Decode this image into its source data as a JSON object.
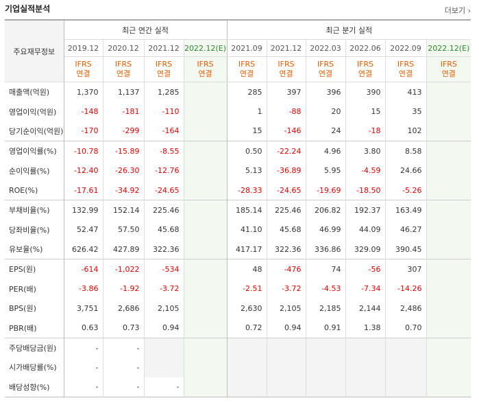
{
  "title": "기업실적분석",
  "more": "더보기",
  "label_header": "주요재무정보",
  "annual_header": "최근 연간 실적",
  "quarter_header": "최근 분기 실적",
  "annual_periods": [
    "2019.12",
    "2020.12",
    "2021.12",
    "2022.12(E)"
  ],
  "quarter_periods": [
    "2021.09",
    "2021.12",
    "2022.03",
    "2022.06",
    "2022.09",
    "2022.12(E)"
  ],
  "basis_line1": "IFRS",
  "basis_line2": "연결",
  "rows": [
    {
      "label": "매출액(억원)",
      "vals": [
        "1,370",
        "1,137",
        "1,285",
        "",
        "285",
        "397",
        "396",
        "390",
        "413",
        ""
      ]
    },
    {
      "label": "영업이익(억원)",
      "vals": [
        "-148",
        "-181",
        "-110",
        "",
        "1",
        "-88",
        "20",
        "15",
        "35",
        ""
      ]
    },
    {
      "label": "당기순이익(억원)",
      "vals": [
        "-170",
        "-299",
        "-164",
        "",
        "15",
        "-146",
        "24",
        "-18",
        "102",
        ""
      ]
    },
    {
      "label": "영업이익률(%)",
      "vals": [
        "-10.78",
        "-15.89",
        "-8.55",
        "",
        "0.50",
        "-22.24",
        "4.96",
        "3.80",
        "8.58",
        ""
      ]
    },
    {
      "label": "순이익률(%)",
      "vals": [
        "-12.40",
        "-26.30",
        "-12.76",
        "",
        "5.13",
        "-36.89",
        "5.95",
        "-4.59",
        "24.66",
        ""
      ]
    },
    {
      "label": "ROE(%)",
      "vals": [
        "-17.61",
        "-34.92",
        "-24.65",
        "",
        "-28.33",
        "-24.65",
        "-19.69",
        "-18.50",
        "-5.26",
        ""
      ]
    },
    {
      "label": "부채비율(%)",
      "vals": [
        "132.99",
        "152.14",
        "225.46",
        "",
        "185.14",
        "225.46",
        "206.82",
        "192.37",
        "163.49",
        ""
      ]
    },
    {
      "label": "당좌비율(%)",
      "vals": [
        "52.47",
        "57.50",
        "45.68",
        "",
        "41.10",
        "45.68",
        "46.99",
        "44.09",
        "46.27",
        ""
      ]
    },
    {
      "label": "유보율(%)",
      "vals": [
        "626.42",
        "427.89",
        "322.36",
        "",
        "417.17",
        "322.36",
        "336.86",
        "329.09",
        "390.45",
        ""
      ]
    },
    {
      "label": "EPS(원)",
      "vals": [
        "-614",
        "-1,022",
        "-534",
        "",
        "48",
        "-476",
        "74",
        "-56",
        "307",
        ""
      ]
    },
    {
      "label": "PER(배)",
      "vals": [
        "-3.86",
        "-1.92",
        "-3.72",
        "",
        "-2.51",
        "-3.72",
        "-4.53",
        "-7.34",
        "-14.26",
        ""
      ]
    },
    {
      "label": "BPS(원)",
      "vals": [
        "3,751",
        "2,686",
        "2,105",
        "",
        "2,630",
        "2,105",
        "2,185",
        "2,144",
        "2,486",
        ""
      ]
    },
    {
      "label": "PBR(배)",
      "vals": [
        "0.63",
        "0.73",
        "0.94",
        "",
        "0.72",
        "0.94",
        "0.91",
        "1.38",
        "0.70",
        ""
      ]
    },
    {
      "label": "주당배당금(원)",
      "vals": [
        "-",
        "-",
        "",
        "",
        "",
        "",
        "",
        "",
        "",
        ""
      ]
    },
    {
      "label": "시가배당률(%)",
      "vals": [
        "-",
        "-",
        "",
        "",
        "",
        "",
        "",
        "",
        "",
        ""
      ]
    },
    {
      "label": "배당성향(%)",
      "vals": [
        "-",
        "-",
        "-",
        "",
        "",
        "",
        "",
        "",
        "",
        ""
      ]
    }
  ]
}
